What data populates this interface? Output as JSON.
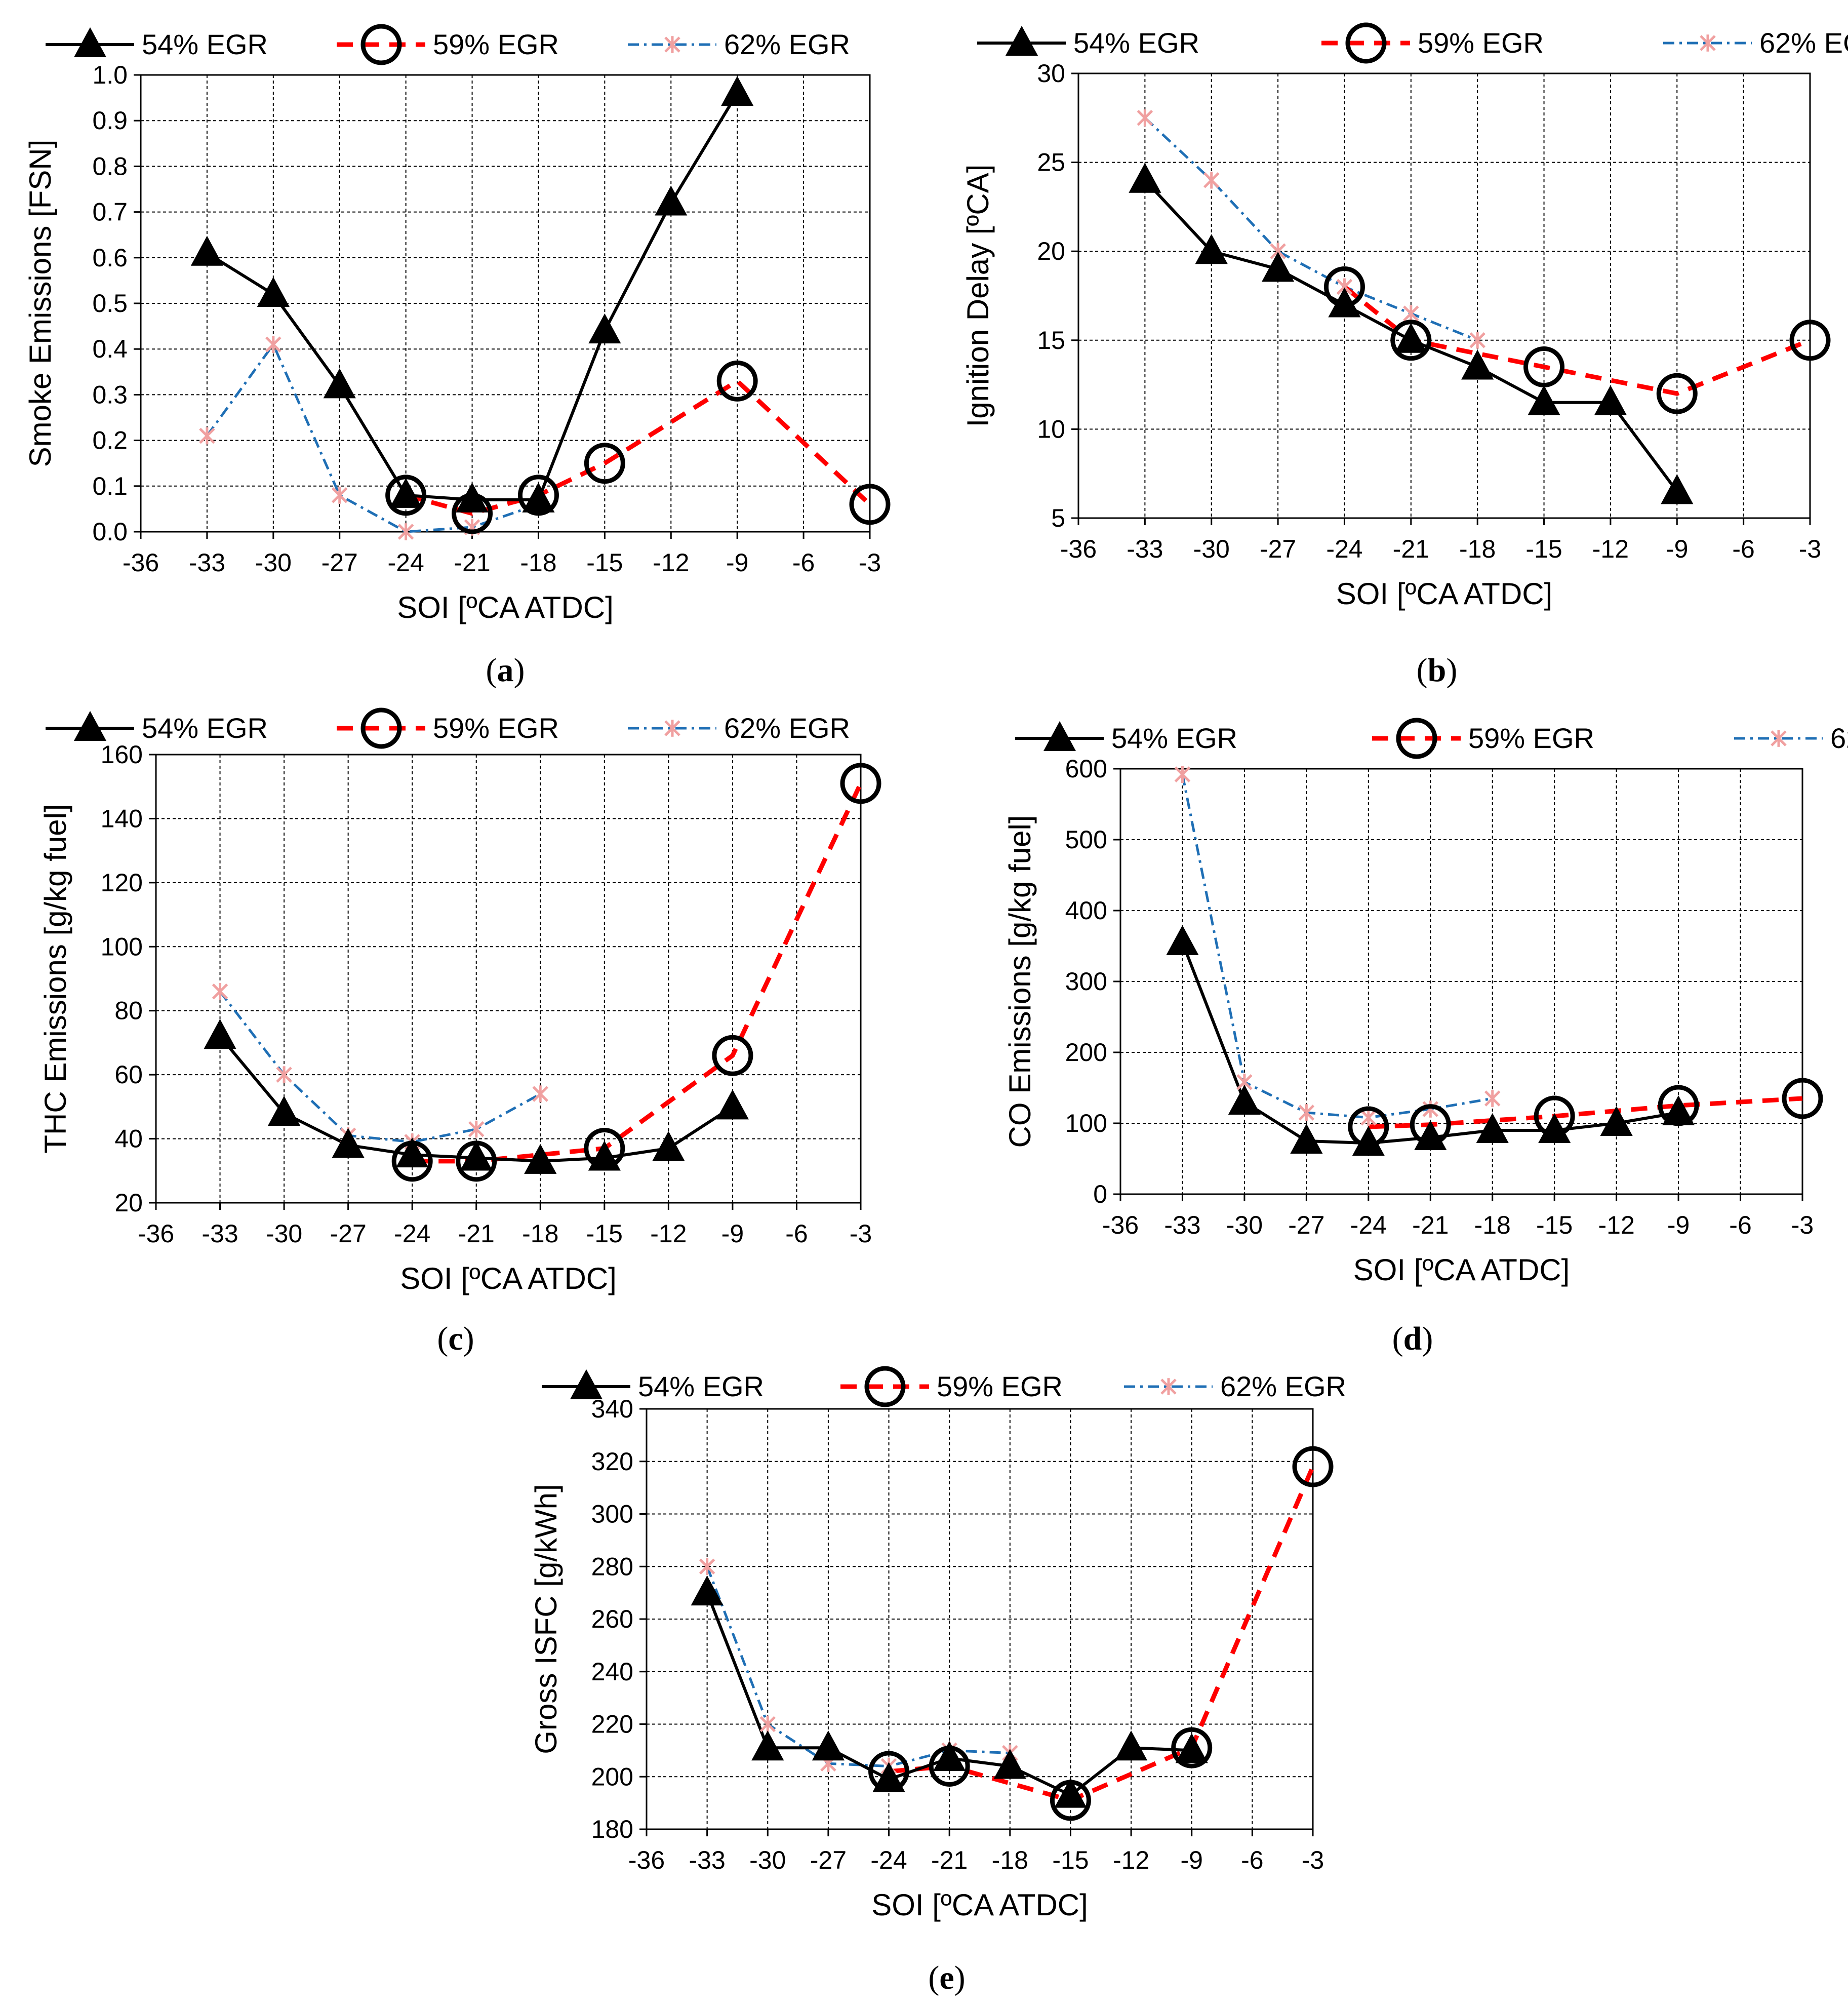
{
  "colors": {
    "s54": "#000000",
    "s59": "#ff0000",
    "s62": "#1f6fb5",
    "s62marker": "#f0a0a0"
  },
  "legend": [
    "54% EGR",
    "59% EGR",
    "62% EGR"
  ],
  "chart_data": [
    {
      "id": "a",
      "type": "line",
      "caption_letter": "a",
      "ylabel": "Smoke Emissions [FSN]",
      "xlabel": "SOI [ºCA ATDC]",
      "xlim": [
        -36,
        -3
      ],
      "xticks": [
        -36,
        -33,
        -30,
        -27,
        -24,
        -21,
        -18,
        -15,
        -12,
        -9,
        -6,
        -3
      ],
      "ylim": [
        0,
        1
      ],
      "yticks": [
        0,
        0.1,
        0.2,
        0.3,
        0.4,
        0.5,
        0.6,
        0.7,
        0.8,
        0.9,
        1.0
      ],
      "ytick_labels": [
        "0.0",
        "0.1",
        "0.2",
        "0.3",
        "0.4",
        "0.5",
        "0.6",
        "0.7",
        "0.8",
        "0.9",
        "1.0"
      ],
      "series": [
        {
          "name": "54% EGR",
          "x": [
            -33,
            -30,
            -27,
            -24,
            -21,
            -18,
            -15,
            -12,
            -9
          ],
          "y": [
            0.61,
            0.52,
            0.32,
            0.08,
            0.07,
            0.07,
            0.44,
            0.72,
            0.96
          ]
        },
        {
          "name": "59% EGR",
          "x": [
            -24,
            -21,
            -18,
            -15,
            -9,
            -3
          ],
          "y": [
            0.08,
            0.04,
            0.08,
            0.15,
            0.33,
            0.06
          ]
        },
        {
          "name": "62% EGR",
          "x": [
            -33,
            -30,
            -27,
            -24,
            -21,
            -18
          ],
          "y": [
            0.21,
            0.41,
            0.08,
            0.0,
            0.01,
            0.06
          ]
        }
      ]
    },
    {
      "id": "b",
      "type": "line",
      "caption_letter": "b",
      "ylabel": "Ignition Delay [ºCA]",
      "xlabel": "SOI [ºCA ATDC]",
      "xlim": [
        -36,
        -3
      ],
      "xticks": [
        -36,
        -33,
        -30,
        -27,
        -24,
        -21,
        -18,
        -15,
        -12,
        -9,
        -6,
        -3
      ],
      "ylim": [
        5,
        30
      ],
      "yticks": [
        5,
        10,
        15,
        20,
        25,
        30
      ],
      "ytick_labels": [
        "5",
        "10",
        "15",
        "20",
        "25",
        "30"
      ],
      "series": [
        {
          "name": "54% EGR",
          "x": [
            -33,
            -30,
            -27,
            -24,
            -21,
            -18,
            -15,
            -12,
            -9
          ],
          "y": [
            24,
            20,
            19,
            17,
            15,
            13.5,
            11.5,
            11.5,
            6.5
          ]
        },
        {
          "name": "59% EGR",
          "x": [
            -24,
            -21,
            -15,
            -9,
            -3
          ],
          "y": [
            18,
            15,
            13.5,
            12,
            15
          ]
        },
        {
          "name": "62% EGR",
          "x": [
            -33,
            -30,
            -27,
            -24,
            -21,
            -18
          ],
          "y": [
            27.5,
            24,
            20,
            18,
            16.5,
            15
          ]
        }
      ]
    },
    {
      "id": "c",
      "type": "line",
      "caption_letter": "c",
      "ylabel": "THC Emissions [g/kg fuel]",
      "xlabel": "SOI [ºCA ATDC]",
      "xlim": [
        -36,
        -3
      ],
      "xticks": [
        -36,
        -33,
        -30,
        -27,
        -24,
        -21,
        -18,
        -15,
        -12,
        -9,
        -6,
        -3
      ],
      "ylim": [
        20,
        160
      ],
      "yticks": [
        20,
        40,
        60,
        80,
        100,
        120,
        140,
        160
      ],
      "ytick_labels": [
        "20",
        "40",
        "60",
        "80",
        "100",
        "120",
        "140",
        "160"
      ],
      "series": [
        {
          "name": "54% EGR",
          "x": [
            -33,
            -30,
            -27,
            -24,
            -21,
            -18,
            -15,
            -12,
            -9
          ],
          "y": [
            72,
            48,
            38,
            35,
            34,
            33,
            34,
            37,
            50
          ]
        },
        {
          "name": "59% EGR",
          "x": [
            -24,
            -21,
            -15,
            -9,
            -3
          ],
          "y": [
            33,
            33,
            37,
            66,
            151
          ]
        },
        {
          "name": "62% EGR",
          "x": [
            -33,
            -30,
            -27,
            -24,
            -21,
            -18
          ],
          "y": [
            86,
            60,
            41,
            39,
            43,
            54
          ]
        }
      ]
    },
    {
      "id": "d",
      "type": "line",
      "caption_letter": "d",
      "ylabel": "CO Emissions [g/kg fuel]",
      "xlabel": "SOI [ºCA ATDC]",
      "xlim": [
        -36,
        -3
      ],
      "xticks": [
        -36,
        -33,
        -30,
        -27,
        -24,
        -21,
        -18,
        -15,
        -12,
        -9,
        -6,
        -3
      ],
      "ylim": [
        0,
        600
      ],
      "yticks": [
        0,
        100,
        200,
        300,
        400,
        500,
        600
      ],
      "ytick_labels": [
        "0",
        "100",
        "200",
        "300",
        "400",
        "500",
        "600"
      ],
      "series": [
        {
          "name": "54% EGR",
          "x": [
            -33,
            -30,
            -27,
            -24,
            -21,
            -18,
            -15,
            -12,
            -9
          ],
          "y": [
            355,
            130,
            75,
            72,
            80,
            90,
            90,
            100,
            115
          ]
        },
        {
          "name": "59% EGR",
          "x": [
            -24,
            -21,
            -15,
            -9,
            -3
          ],
          "y": [
            95,
            98,
            110,
            125,
            135
          ]
        },
        {
          "name": "62% EGR",
          "x": [
            -33,
            -30,
            -27,
            -24,
            -21,
            -18
          ],
          "y": [
            592,
            158,
            115,
            108,
            120,
            135
          ]
        }
      ]
    },
    {
      "id": "e",
      "type": "line",
      "caption_letter": "e",
      "ylabel": "Gross ISFC [g/kWh]",
      "xlabel": "SOI [ºCA ATDC]",
      "xlim": [
        -36,
        -3
      ],
      "xticks": [
        -36,
        -33,
        -30,
        -27,
        -24,
        -21,
        -18,
        -15,
        -12,
        -9,
        -6,
        -3
      ],
      "ylim": [
        180,
        340
      ],
      "yticks": [
        180,
        200,
        220,
        240,
        260,
        280,
        300,
        320,
        340
      ],
      "ytick_labels": [
        "180",
        "200",
        "220",
        "240",
        "260",
        "280",
        "300",
        "320",
        "340"
      ],
      "series": [
        {
          "name": "54% EGR",
          "x": [
            -33,
            -30,
            -27,
            -24,
            -21,
            -18,
            -15,
            -12,
            -9
          ],
          "y": [
            270,
            211,
            211,
            199,
            207,
            204,
            193,
            211,
            210
          ]
        },
        {
          "name": "59% EGR",
          "x": [
            -24,
            -21,
            -15,
            -9,
            -3
          ],
          "y": [
            202,
            204,
            191,
            211,
            318
          ]
        },
        {
          "name": "62% EGR",
          "x": [
            -33,
            -30,
            -27,
            -24,
            -21,
            -18
          ],
          "y": [
            280,
            220,
            205,
            204,
            210,
            209
          ]
        }
      ]
    }
  ]
}
